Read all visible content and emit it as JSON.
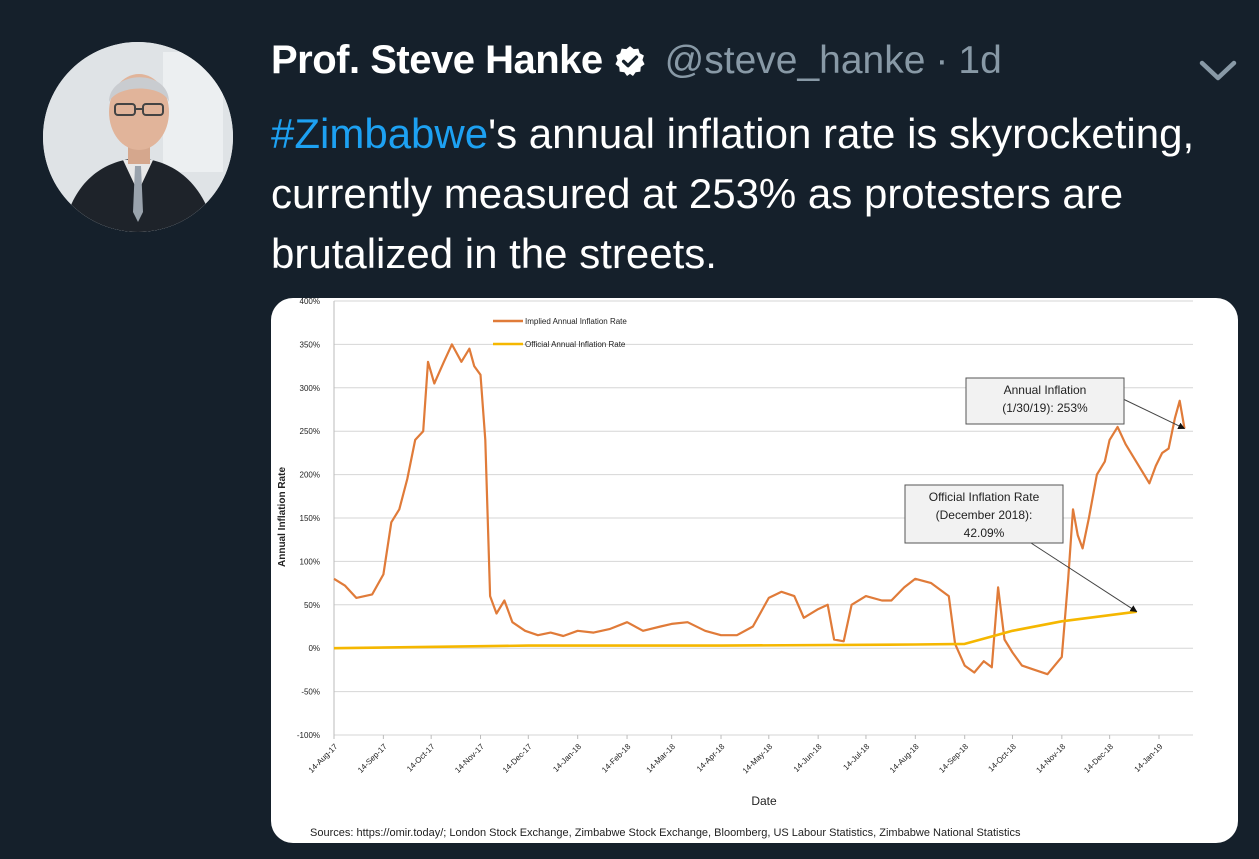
{
  "tweet": {
    "author_name": "Prof. Steve Hanke",
    "handle": "@steve_hanke",
    "separator": "·",
    "time": "1d",
    "hashtag": "#Zimbabwe",
    "text_rest": "'s annual inflation rate is skyrocketing, currently measured at 253% as protesters are brutalized in the streets.",
    "icons": {
      "verified": "verified-badge-icon",
      "more": "chevron-down-icon"
    },
    "colors": {
      "background": "#15202b",
      "link": "#1da1f2",
      "muted": "#8899a6"
    }
  },
  "chart_data": {
    "type": "line",
    "xlabel": "Date",
    "ylabel": "Annual Inflation Rate",
    "ylim": [
      -100,
      400
    ],
    "y_ticks": [
      "400%",
      "350%",
      "300%",
      "250%",
      "200%",
      "150%",
      "100%",
      "50%",
      "0%",
      "-50%",
      "-100%"
    ],
    "x_ticks": [
      "14-Aug-17",
      "14-Sep-17",
      "14-Oct-17",
      "14-Nov-17",
      "14-Dec-17",
      "14-Jan-18",
      "14-Feb-18",
      "14-Mar-18",
      "14-Apr-18",
      "14-May-18",
      "14-Jun-18",
      "14-Jul-18",
      "14-Aug-18",
      "14-Sep-18",
      "14-Oct-18",
      "14-Nov-18",
      "14-Dec-18",
      "14-Jan-19"
    ],
    "grid": true,
    "legend_position": "top-left",
    "series": [
      {
        "name": "Implied Annual Inflation Rate",
        "color": "#e07b39",
        "points": [
          [
            "14-Aug-17",
            80
          ],
          [
            "21-Aug-17",
            72
          ],
          [
            "28-Aug-17",
            58
          ],
          [
            "07-Sep-17",
            62
          ],
          [
            "14-Sep-17",
            85
          ],
          [
            "19-Sep-17",
            145
          ],
          [
            "24-Sep-17",
            160
          ],
          [
            "29-Sep-17",
            195
          ],
          [
            "04-Oct-17",
            240
          ],
          [
            "09-Oct-17",
            250
          ],
          [
            "12-Oct-17",
            330
          ],
          [
            "16-Oct-17",
            305
          ],
          [
            "22-Oct-17",
            330
          ],
          [
            "27-Oct-17",
            350
          ],
          [
            "02-Nov-17",
            330
          ],
          [
            "07-Nov-17",
            345
          ],
          [
            "10-Nov-17",
            325
          ],
          [
            "14-Nov-17",
            315
          ],
          [
            "17-Nov-17",
            240
          ],
          [
            "20-Nov-17",
            60
          ],
          [
            "24-Nov-17",
            40
          ],
          [
            "29-Nov-17",
            55
          ],
          [
            "04-Dec-17",
            30
          ],
          [
            "12-Dec-17",
            20
          ],
          [
            "20-Dec-17",
            15
          ],
          [
            "28-Dec-17",
            18
          ],
          [
            "05-Jan-18",
            14
          ],
          [
            "14-Jan-18",
            20
          ],
          [
            "24-Jan-18",
            18
          ],
          [
            "03-Feb-18",
            22
          ],
          [
            "14-Feb-18",
            30
          ],
          [
            "24-Feb-18",
            20
          ],
          [
            "07-Mar-18",
            25
          ],
          [
            "14-Mar-18",
            28
          ],
          [
            "24-Mar-18",
            30
          ],
          [
            "04-Apr-18",
            20
          ],
          [
            "14-Apr-18",
            15
          ],
          [
            "24-Apr-18",
            15
          ],
          [
            "04-May-18",
            25
          ],
          [
            "14-May-18",
            58
          ],
          [
            "22-May-18",
            65
          ],
          [
            "30-May-18",
            60
          ],
          [
            "05-Jun-18",
            35
          ],
          [
            "14-Jun-18",
            45
          ],
          [
            "20-Jun-18",
            50
          ],
          [
            "24-Jun-18",
            10
          ],
          [
            "30-Jun-18",
            8
          ],
          [
            "05-Jul-18",
            50
          ],
          [
            "14-Jul-18",
            60
          ],
          [
            "24-Jul-18",
            55
          ],
          [
            "30-Jul-18",
            55
          ],
          [
            "07-Aug-18",
            70
          ],
          [
            "14-Aug-18",
            80
          ],
          [
            "24-Aug-18",
            75
          ],
          [
            "04-Sep-18",
            60
          ],
          [
            "08-Sep-18",
            5
          ],
          [
            "14-Sep-18",
            -20
          ],
          [
            "20-Sep-18",
            -28
          ],
          [
            "26-Sep-18",
            -15
          ],
          [
            "01-Oct-18",
            -22
          ],
          [
            "05-Oct-18",
            70
          ],
          [
            "09-Oct-18",
            10
          ],
          [
            "14-Oct-18",
            -5
          ],
          [
            "20-Oct-18",
            -20
          ],
          [
            "28-Oct-18",
            -25
          ],
          [
            "05-Nov-18",
            -30
          ],
          [
            "14-Nov-18",
            -10
          ],
          [
            "18-Nov-18",
            80
          ],
          [
            "21-Nov-18",
            160
          ],
          [
            "24-Nov-18",
            130
          ],
          [
            "27-Nov-18",
            115
          ],
          [
            "01-Dec-18",
            150
          ],
          [
            "06-Dec-18",
            200
          ],
          [
            "11-Dec-18",
            215
          ],
          [
            "14-Dec-18",
            240
          ],
          [
            "19-Dec-18",
            255
          ],
          [
            "24-Dec-18",
            235
          ],
          [
            "29-Dec-18",
            220
          ],
          [
            "03-Jan-19",
            205
          ],
          [
            "08-Jan-19",
            190
          ],
          [
            "12-Jan-19",
            210
          ],
          [
            "16-Jan-19",
            225
          ],
          [
            "20-Jan-19",
            230
          ],
          [
            "24-Jan-19",
            265
          ],
          [
            "27-Jan-19",
            285
          ],
          [
            "30-Jan-19",
            253
          ]
        ]
      },
      {
        "name": "Official Annual Inflation Rate",
        "color": "#f5b700",
        "points": [
          [
            "14-Aug-17",
            0
          ],
          [
            "14-Dec-17",
            3
          ],
          [
            "14-Apr-18",
            3
          ],
          [
            "14-Aug-18",
            4.3
          ],
          [
            "14-Sep-18",
            5
          ],
          [
            "14-Oct-18",
            20
          ],
          [
            "14-Nov-18",
            31
          ],
          [
            "31-Dec-18",
            42.09
          ]
        ]
      }
    ],
    "annotations": [
      {
        "id": "annual",
        "lines": [
          "Annual Inflation",
          "(1/30/19): 253%"
        ],
        "target": [
          "30-Jan-19",
          253
        ]
      },
      {
        "id": "official",
        "lines": [
          "Official Inflation Rate",
          "(December 2018):",
          "42.09%"
        ],
        "target": [
          "31-Dec-18",
          42.09
        ]
      }
    ],
    "source": "Sources: https://omir.today/; London Stock Exchange, Zimbabwe Stock Exchange, Bloomberg, US Labour Statistics, Zimbabwe National Statistics"
  }
}
